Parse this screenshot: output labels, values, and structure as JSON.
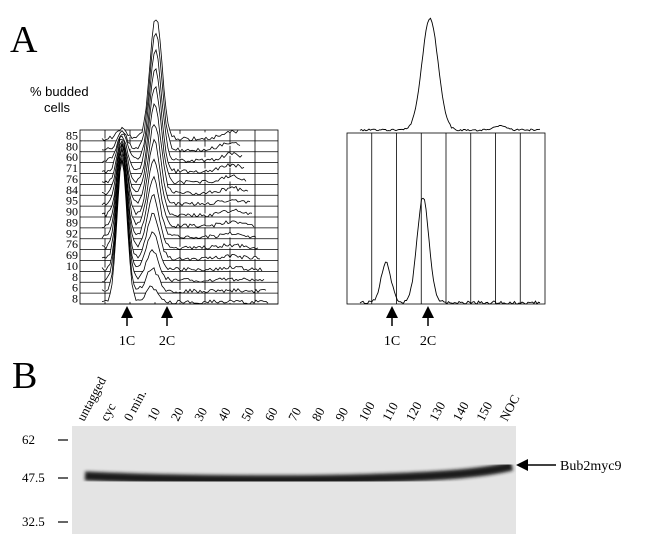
{
  "panel_a": {
    "label": "A",
    "y_title": [
      "% budded",
      "cells"
    ],
    "row_labels": [
      "85",
      "80",
      "60",
      "71",
      "76",
      "84",
      "95",
      "90",
      "89",
      "92",
      "76",
      "69",
      "10",
      "8",
      "6",
      "8"
    ],
    "left_markers": [
      "1C",
      "2C"
    ],
    "right_markers": [
      "1C",
      "2C"
    ]
  },
  "panel_b": {
    "label": "B",
    "lanes": [
      "untagged",
      "cyc",
      "0 min.",
      "10",
      "20",
      "30",
      "40",
      "50",
      "60",
      "70",
      "80",
      "90",
      "100",
      "110",
      "120",
      "130",
      "140",
      "150",
      "NOC"
    ],
    "mw_markers": [
      "62",
      "47.5",
      "32.5"
    ],
    "band_label": "Bub2myc9"
  }
}
